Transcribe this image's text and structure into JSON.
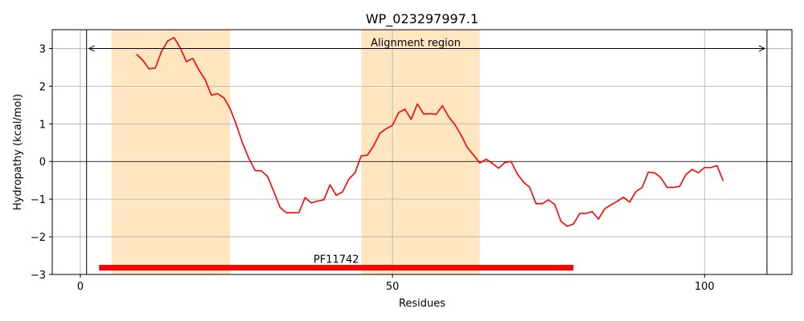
{
  "chart_data": {
    "type": "line",
    "title": "WP_023297997.1",
    "xlabel": "Residues",
    "ylabel": "Hydropathy (kcal/mol)",
    "xlim": [
      -4.5,
      114
    ],
    "ylim": [
      -3,
      3.5
    ],
    "xticks": [
      0,
      50,
      100
    ],
    "yticks": [
      -3,
      -2,
      -1,
      0,
      1,
      2,
      3
    ],
    "ytick_labels": [
      "−3",
      "−2",
      "−1",
      "0",
      "1",
      "2",
      "3"
    ],
    "grid": true,
    "line_color": "#ff0000",
    "shaded_regions": [
      {
        "start": 5,
        "end": 24,
        "color": "#ffe6c0"
      },
      {
        "start": 45,
        "end": 64,
        "color": "#ffe6c0"
      }
    ],
    "alignment_region": {
      "label": "Alignment region",
      "start": 1,
      "end": 110,
      "y": 3
    },
    "domain": {
      "label": "PF11742",
      "start": 3,
      "end": 79,
      "y": -2.82,
      "color": "#ff0000"
    },
    "series": [
      {
        "x": [
          9,
          10,
          11,
          12,
          13,
          14,
          15,
          16,
          17,
          18,
          19,
          20,
          21,
          22,
          23,
          24,
          25,
          26,
          27,
          28,
          29,
          30,
          31,
          32,
          33,
          34,
          35,
          36,
          37,
          38,
          39,
          40,
          41,
          42,
          43,
          44,
          45,
          46,
          47,
          48,
          49,
          50,
          51,
          52,
          53,
          54,
          55,
          56,
          57,
          58,
          59,
          60,
          61,
          62,
          63,
          64,
          65,
          66,
          67,
          68,
          69,
          70,
          71,
          72,
          73,
          74,
          75,
          76,
          77,
          78,
          79,
          80,
          81,
          82,
          83,
          84,
          85,
          86,
          87,
          88,
          89,
          90,
          91,
          92,
          93,
          94,
          95,
          96,
          97,
          98,
          99,
          100,
          101,
          102,
          103
        ],
        "y": [
          2.85,
          2.69,
          2.46,
          2.48,
          2.92,
          3.2,
          3.29,
          3.02,
          2.65,
          2.74,
          2.43,
          2.17,
          1.76,
          1.8,
          1.69,
          1.4,
          0.97,
          0.48,
          0.08,
          -0.24,
          -0.25,
          -0.4,
          -0.8,
          -1.22,
          -1.36,
          -1.36,
          -1.36,
          -0.96,
          -1.1,
          -1.05,
          -1.02,
          -0.62,
          -0.9,
          -0.81,
          -0.47,
          -0.3,
          0.15,
          0.17,
          0.42,
          0.75,
          0.87,
          0.96,
          1.3,
          1.39,
          1.12,
          1.53,
          1.26,
          1.27,
          1.25,
          1.48,
          1.19,
          0.98,
          0.7,
          0.37,
          0.17,
          -0.04,
          0.06,
          -0.05,
          -0.18,
          -0.03,
          0.0,
          -0.33,
          -0.55,
          -0.69,
          -1.12,
          -1.12,
          -1.02,
          -1.14,
          -1.59,
          -1.72,
          -1.66,
          -1.38,
          -1.38,
          -1.33,
          -1.53,
          -1.26,
          -1.15,
          -1.06,
          -0.95,
          -1.08,
          -0.8,
          -0.69,
          -0.28,
          -0.3,
          -0.43,
          -0.69,
          -0.69,
          -0.66,
          -0.35,
          -0.21,
          -0.3,
          -0.16,
          -0.16,
          -0.11,
          -0.52
        ]
      }
    ]
  }
}
